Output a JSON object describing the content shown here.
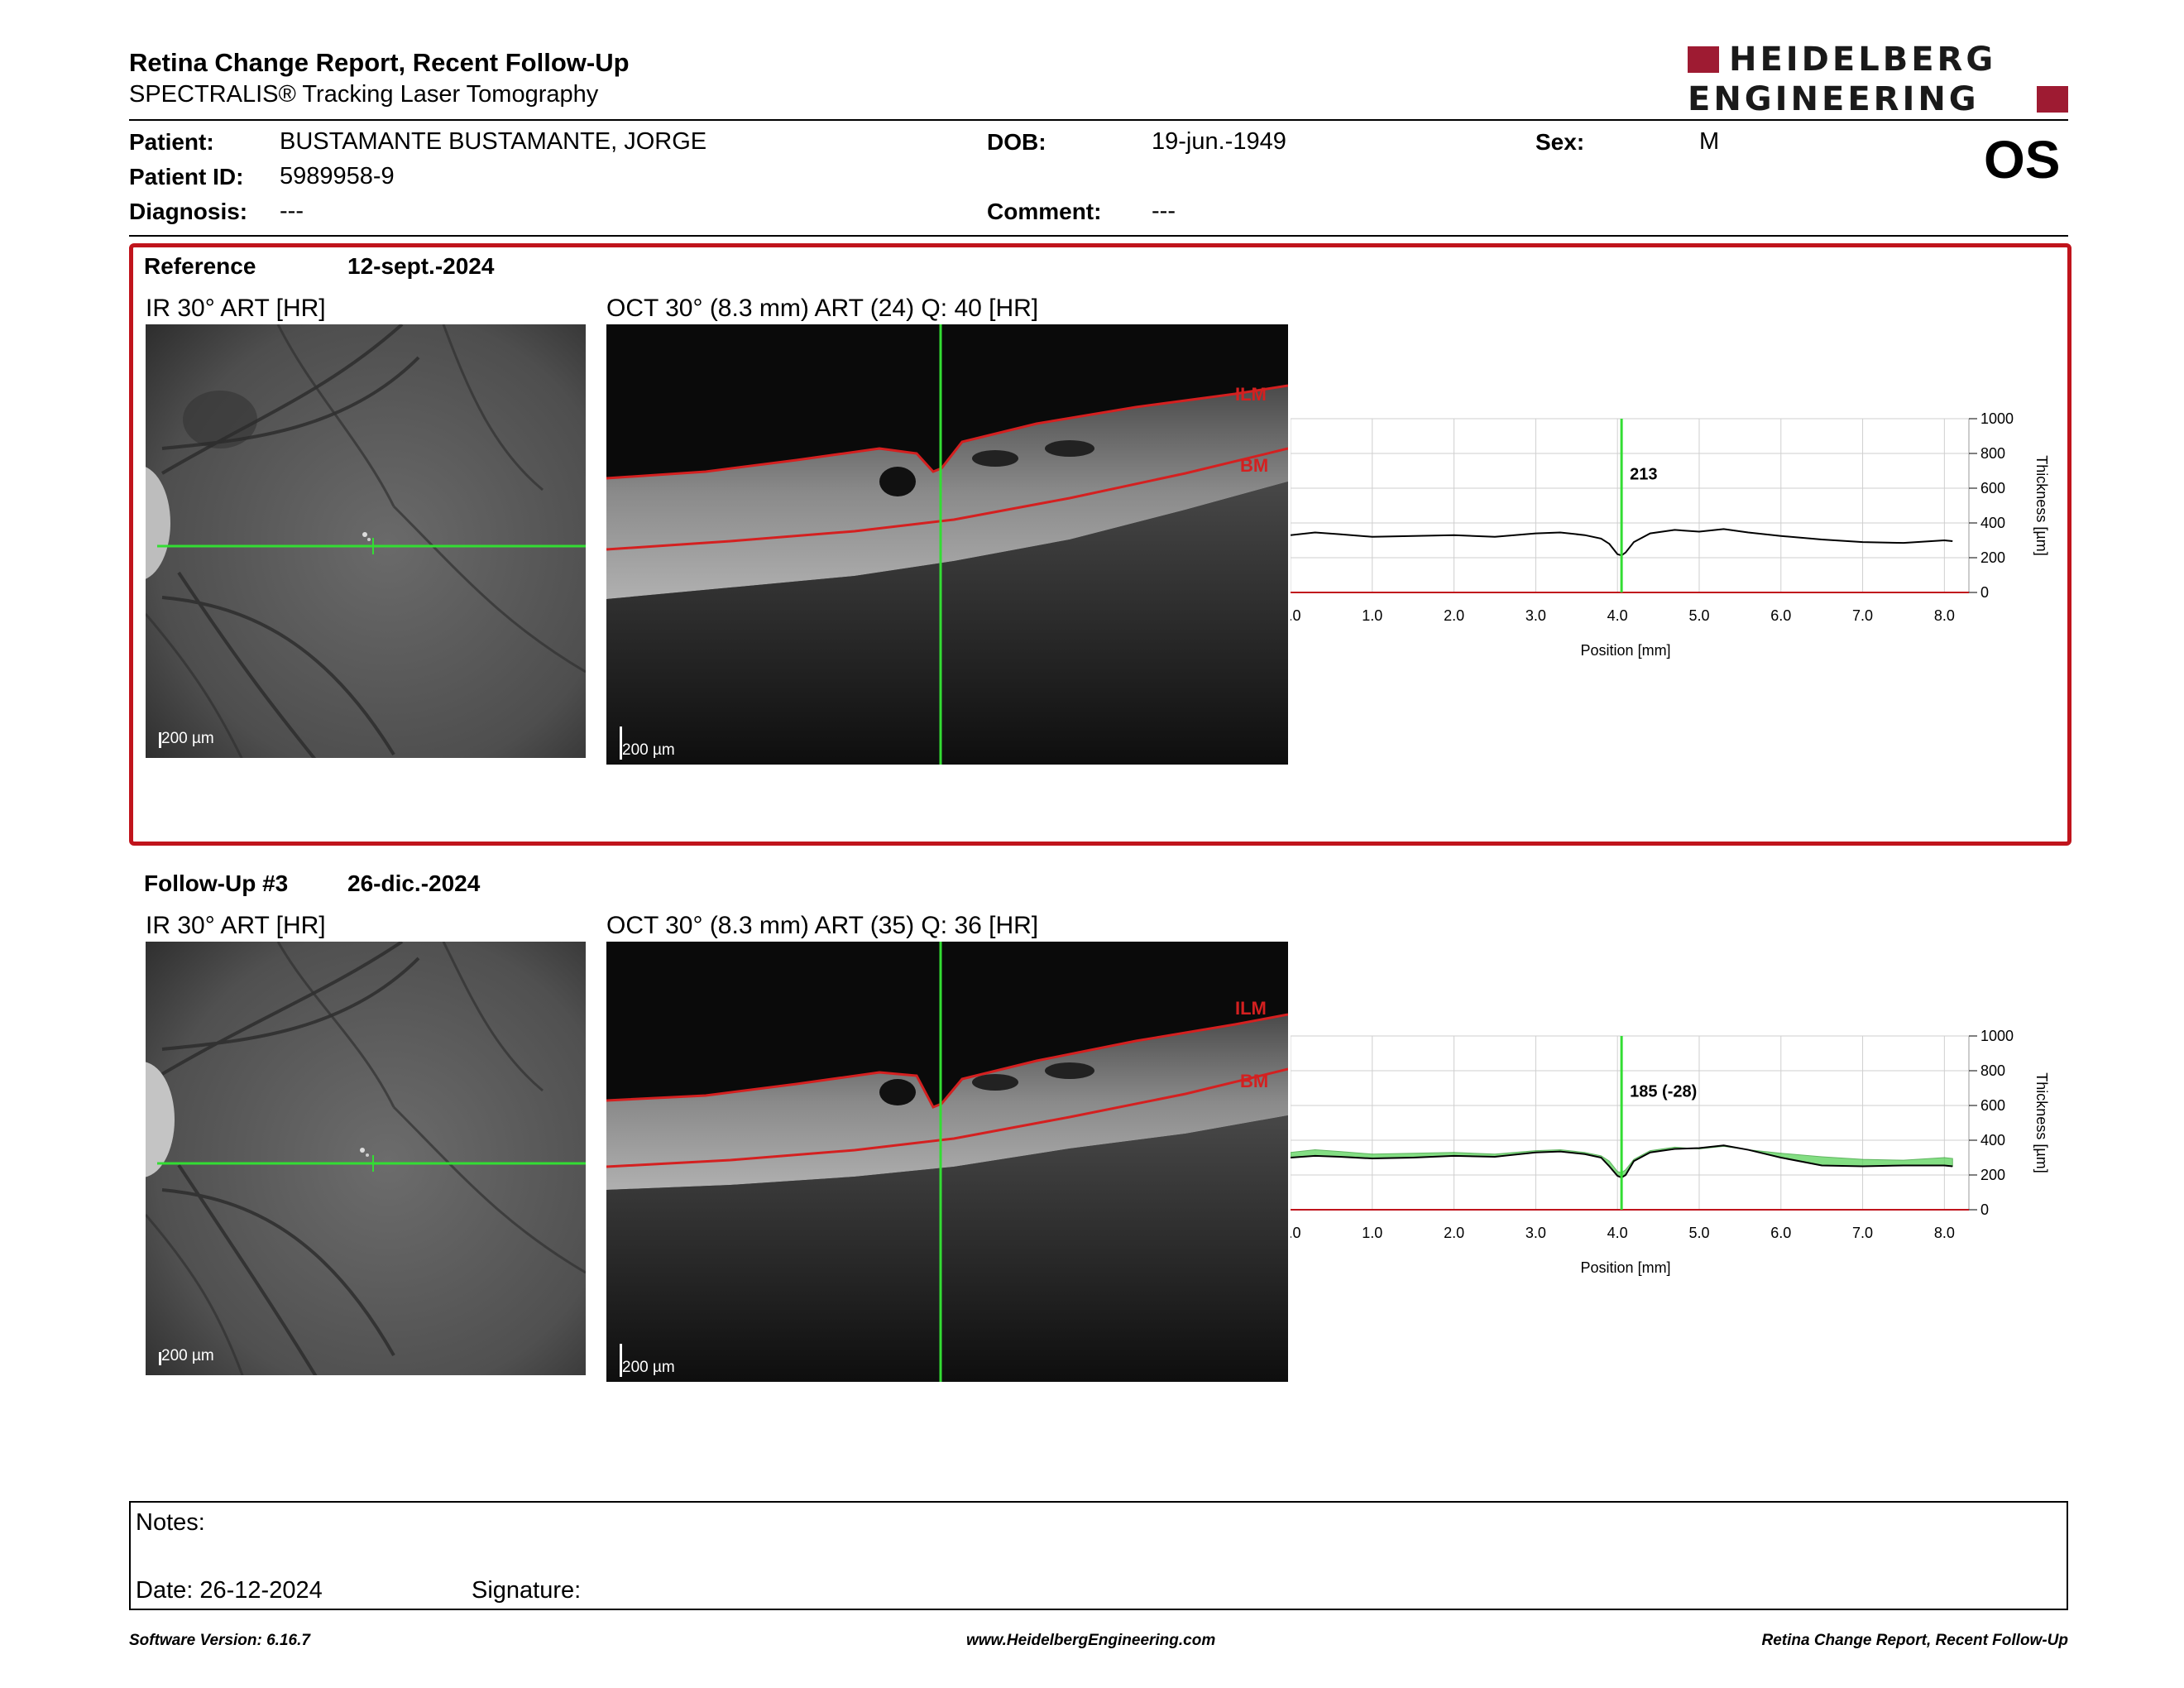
{
  "header": {
    "title": "Retina Change Report, Recent Follow-Up",
    "subtitle": "SPECTRALIS® Tracking Laser Tomography",
    "logo_line1": "HEIDELBERG",
    "logo_line2": "ENGINEERING",
    "eye": "OS"
  },
  "patient": {
    "patient_label": "Patient:",
    "patient_value": "BUSTAMANTE BUSTAMANTE, JORGE",
    "id_label": "Patient ID:",
    "id_value": "5989958-9",
    "diagnosis_label": "Diagnosis:",
    "diagnosis_value": "---",
    "dob_label": "DOB:",
    "dob_value": "19-jun.-1949",
    "comment_label": "Comment:",
    "comment_value": "---",
    "sex_label": "Sex:",
    "sex_value": "M"
  },
  "reference": {
    "label": "Reference",
    "date": "12-sept.-2024",
    "ir_title": "IR 30° ART [HR]",
    "oct_title": "OCT 30° (8.3 mm) ART (24) Q: 40 [HR]",
    "ir_scale": "200 µm",
    "oct_scale": "200 µm",
    "ilm_label": "ILM",
    "bm_label": "BM"
  },
  "followup": {
    "label": "Follow-Up #3",
    "date": "26-dic.-2024",
    "ir_title": "IR 30° ART [HR]",
    "oct_title": "OCT 30° (8.3 mm) ART (35) Q: 36 [HR]",
    "ir_scale": "200 µm",
    "oct_scale": "200 µm",
    "ilm_label": "ILM",
    "bm_label": "BM"
  },
  "chart_data": [
    {
      "type": "line",
      "xlabel": "Position [mm]",
      "ylabel": "Thickness [µm]",
      "xlim": [
        0,
        8.3
      ],
      "ylim": [
        0,
        1000
      ],
      "x_ticks": [
        "0.0",
        "1.0",
        "2.0",
        "3.0",
        "4.0",
        "5.0",
        "6.0",
        "7.0",
        "8.0"
      ],
      "y_ticks": [
        "0",
        "200",
        "400",
        "600",
        "800",
        "1000"
      ],
      "grid": true,
      "marker_x": 4.05,
      "marker_label": "213",
      "series": [
        {
          "color": "#000000",
          "x": [
            0,
            0.3,
            0.6,
            1.0,
            1.5,
            2.0,
            2.5,
            3.0,
            3.3,
            3.6,
            3.8,
            3.9,
            4.0,
            4.05,
            4.1,
            4.2,
            4.4,
            4.7,
            5.0,
            5.3,
            5.6,
            6.0,
            6.5,
            7.0,
            7.5,
            8.0,
            8.1
          ],
          "y": [
            330,
            345,
            335,
            320,
            325,
            330,
            320,
            340,
            345,
            330,
            310,
            280,
            220,
            213,
            230,
            290,
            340,
            360,
            350,
            365,
            345,
            325,
            305,
            290,
            285,
            300,
            295
          ]
        }
      ]
    },
    {
      "type": "area",
      "xlabel": "Position [mm]",
      "ylabel": "Thickness [µm]",
      "xlim": [
        0,
        8.3
      ],
      "ylim": [
        0,
        1000
      ],
      "x_ticks": [
        "0.0",
        "1.0",
        "2.0",
        "3.0",
        "4.0",
        "5.0",
        "6.0",
        "7.0",
        "8.0"
      ],
      "y_ticks": [
        "0",
        "200",
        "400",
        "600",
        "800",
        "1000"
      ],
      "grid": true,
      "marker_x": 4.05,
      "marker_label": "185 (-28)",
      "series": [
        {
          "color": "#000000",
          "x": [
            0,
            0.3,
            0.6,
            1.0,
            1.5,
            2.0,
            2.5,
            3.0,
            3.3,
            3.6,
            3.8,
            3.9,
            4.0,
            4.05,
            4.1,
            4.2,
            4.4,
            4.7,
            5.0,
            5.3,
            5.6,
            6.0,
            6.5,
            7.0,
            7.5,
            8.0,
            8.1
          ],
          "y": [
            300,
            310,
            305,
            295,
            300,
            310,
            305,
            330,
            335,
            320,
            300,
            250,
            195,
            185,
            200,
            280,
            330,
            350,
            355,
            370,
            345,
            300,
            255,
            250,
            255,
            255,
            250
          ]
        },
        {
          "color": "#5ad35a",
          "x": [
            0,
            0.3,
            0.6,
            1.0,
            1.5,
            2.0,
            2.5,
            3.0,
            3.3,
            3.6,
            3.8,
            3.9,
            4.0,
            4.05,
            4.1,
            4.2,
            4.4,
            4.7,
            5.0,
            5.3,
            5.6,
            6.0,
            6.5,
            7.0,
            7.5,
            8.0,
            8.1
          ],
          "y": [
            330,
            345,
            335,
            320,
            325,
            330,
            320,
            340,
            345,
            330,
            310,
            280,
            220,
            213,
            230,
            290,
            340,
            360,
            350,
            365,
            345,
            325,
            305,
            290,
            285,
            300,
            295
          ]
        }
      ]
    }
  ],
  "notes": {
    "notes_label": "Notes:",
    "date_label": "Date: 26-12-2024",
    "signature_label": "Signature:"
  },
  "footer": {
    "version": "Software Version: 6.16.7",
    "website": "www.HeidelbergEngineering.com",
    "report_name": "Retina Change Report, Recent Follow-Up"
  },
  "colors": {
    "accent_red": "#c0141c",
    "logo_red": "#9e1b32",
    "scan_green": "#33dd33",
    "layer_red": "#d42020"
  }
}
